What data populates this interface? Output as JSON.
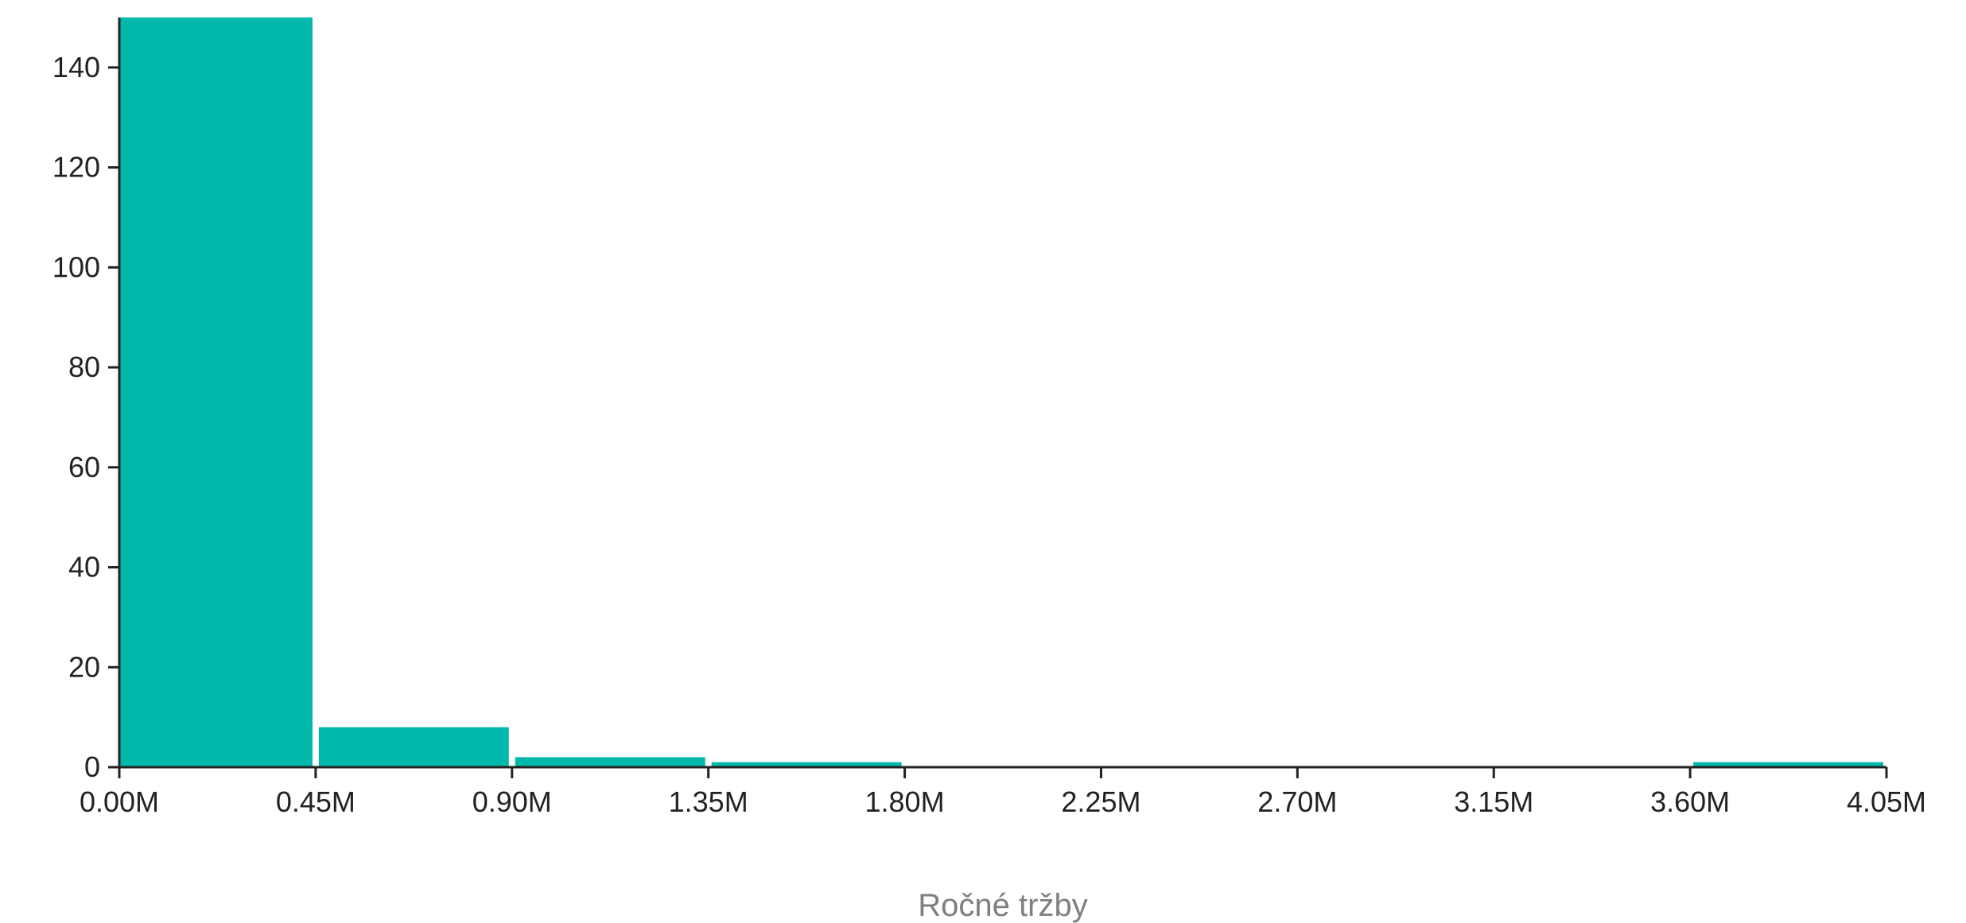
{
  "chart_data": {
    "type": "bar",
    "title": "",
    "xlabel": "Ročné tržby",
    "ylabel": "",
    "bin_edges": [
      0,
      0.45,
      0.9,
      1.35,
      1.8,
      2.25,
      2.7,
      3.15,
      3.6,
      4.05
    ],
    "values": [
      150,
      8,
      2,
      1,
      0,
      0,
      0,
      0,
      1
    ],
    "xlim": [
      0,
      4.05
    ],
    "ylim": [
      0,
      150
    ],
    "x_ticks": [
      "0.00M",
      "0.45M",
      "0.90M",
      "1.35M",
      "1.80M",
      "2.25M",
      "2.70M",
      "3.15M",
      "3.60M",
      "4.05M"
    ],
    "y_ticks": [
      "0",
      "20",
      "40",
      "60",
      "80",
      "100",
      "120",
      "140"
    ],
    "bar_color": "#00b8aa",
    "grid": false,
    "legend": "none"
  }
}
